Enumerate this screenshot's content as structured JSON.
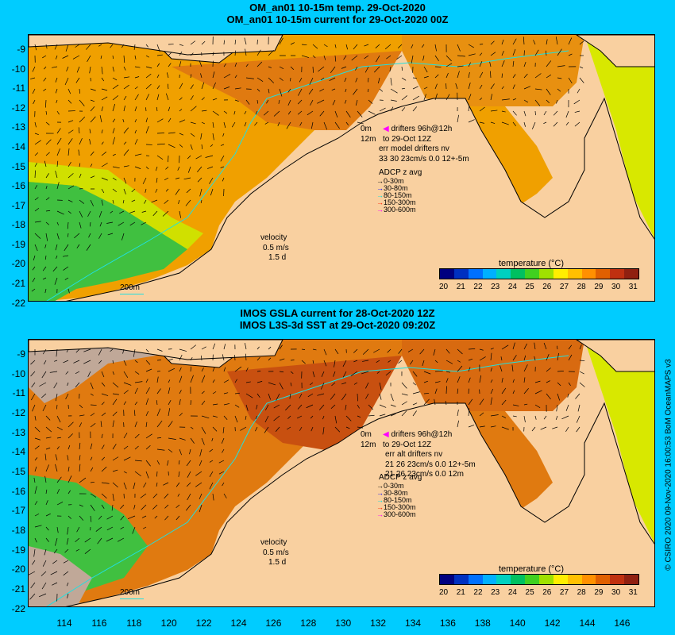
{
  "top_panel": {
    "title_line1": "OM_an01 10-15m temp. 29-Oct-2020",
    "title_line2": "OM_an01 10-15m current for 29-Oct-2020 00Z",
    "legend": {
      "surface_label": "0m",
      "drifters_label": "drifters 96h@12h",
      "depth_label": "12m",
      "to_label": "to 29-Oct 12Z",
      "err_label": "err model drifters nv",
      "stats_label": "33 30 23cm/s 0.0 12+-5m",
      "adcp_title": "ADCP z avg",
      "adcp_items": [
        "0-30m",
        "30-80m",
        "80-150m",
        "150-300m",
        "300-600m"
      ]
    },
    "velocity": {
      "title": "velocity",
      "speed": "0.5 m/s",
      "duration": "1.5 d"
    },
    "isobath_label": "200m",
    "colorbar_title": "temperature (°C)"
  },
  "bottom_panel": {
    "title_line1": "IMOS GSLA current for 28-Oct-2020 12Z",
    "title_line2": "IMOS L3S-3d SST at 29-Oct-2020 09:20Z",
    "legend": {
      "surface_label": "0m",
      "drifters_label": "drifters 96h@12h",
      "depth_label": "12m",
      "to_label": "to 29-Oct 12Z",
      "err_label": "err alt drifters nv",
      "stats_label": "21 26 23cm/s 0.0 12+-5m",
      "stats_label2": "21 26 23cm/s 0.0 12m",
      "adcp_title": "ADCP z avg",
      "adcp_items": [
        "0-30m",
        "30-80m",
        "80-150m",
        "150-300m",
        "300-600m"
      ]
    },
    "velocity": {
      "title": "velocity",
      "speed": "0.5 m/s",
      "duration": "1.5 d"
    },
    "isobath_label": "200m",
    "colorbar_title": "temperature (°C)"
  },
  "colorbar_ticks": [
    "20",
    "21",
    "22",
    "23",
    "24",
    "25",
    "26",
    "27",
    "28",
    "29",
    "30",
    "31"
  ],
  "colorbar_colors": [
    "#000080",
    "#0030c0",
    "#0070ff",
    "#00b0ff",
    "#00d0c0",
    "#00c060",
    "#40d020",
    "#a0e000",
    "#ffee00",
    "#ffc000",
    "#ff9000",
    "#e06000",
    "#c03010",
    "#902010"
  ],
  "lat_labels": [
    "-9",
    "-10",
    "-11",
    "-12",
    "-13",
    "-14",
    "-15",
    "-16",
    "-17",
    "-18",
    "-19",
    "-20",
    "-21",
    "-22"
  ],
  "lon_labels": [
    "114",
    "116",
    "118",
    "120",
    "122",
    "124",
    "126",
    "128",
    "130",
    "132",
    "134",
    "136",
    "138",
    "140",
    "142",
    "144",
    "146"
  ],
  "credit": "© CSIRO 2020   09-Nov-2020 16:00:53 BoM OceanMAPS v3"
}
